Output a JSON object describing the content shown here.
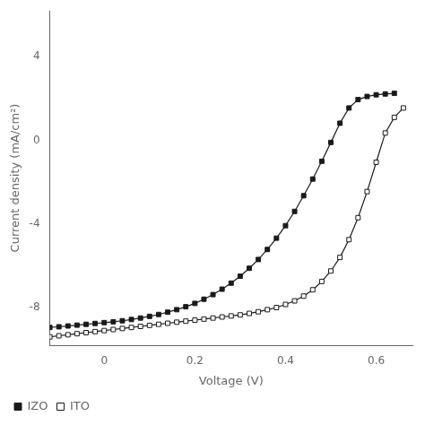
{
  "chart_data": {
    "type": "line",
    "xlabel": "Voltage (V)",
    "ylabel": "Current density (mA/cm²)",
    "xlim": [
      -0.12,
      0.68
    ],
    "ylim": [
      -9.8,
      6.2
    ],
    "xticks": [
      0.0,
      0.2,
      0.4,
      0.6
    ],
    "yticks": [
      -8,
      -4,
      0,
      4
    ],
    "grid": false,
    "legend": "bottom",
    "series": [
      {
        "name": "IZO",
        "color": "#1a1a1a",
        "marker": "square",
        "line_style": "solid",
        "x": [
          -0.12,
          -0.1,
          -0.08,
          -0.06,
          -0.04,
          -0.02,
          0.0,
          0.02,
          0.04,
          0.06,
          0.08,
          0.1,
          0.12,
          0.14,
          0.16,
          0.18,
          0.2,
          0.22,
          0.24,
          0.26,
          0.28,
          0.3,
          0.32,
          0.34,
          0.36,
          0.38,
          0.4,
          0.42,
          0.44,
          0.46,
          0.48,
          0.5,
          0.52,
          0.54,
          0.56,
          0.58,
          0.6,
          0.62,
          0.64
        ],
        "values": [
          -8.95,
          -8.92,
          -8.88,
          -8.84,
          -8.8,
          -8.76,
          -8.72,
          -8.68,
          -8.63,
          -8.57,
          -8.5,
          -8.42,
          -8.33,
          -8.22,
          -8.1,
          -7.96,
          -7.8,
          -7.6,
          -7.38,
          -7.12,
          -6.83,
          -6.5,
          -6.12,
          -5.7,
          -5.22,
          -4.68,
          -4.08,
          -3.4,
          -2.65,
          -1.85,
          -1.0,
          -0.1,
          0.82,
          1.55,
          1.95,
          2.1,
          2.18,
          2.22,
          2.25
        ]
      },
      {
        "name": "ITO",
        "color": "#1a1a1a",
        "marker": "open_square",
        "line_style": "solid",
        "x": [
          -0.12,
          -0.1,
          -0.08,
          -0.06,
          -0.04,
          -0.02,
          0.0,
          0.02,
          0.04,
          0.06,
          0.08,
          0.1,
          0.12,
          0.14,
          0.16,
          0.18,
          0.2,
          0.22,
          0.24,
          0.26,
          0.28,
          0.3,
          0.32,
          0.34,
          0.36,
          0.38,
          0.4,
          0.42,
          0.44,
          0.46,
          0.48,
          0.5,
          0.52,
          0.54,
          0.56,
          0.58,
          0.6,
          0.62,
          0.64,
          0.66
        ],
        "values": [
          -9.4,
          -9.35,
          -9.3,
          -9.25,
          -9.2,
          -9.15,
          -9.1,
          -9.05,
          -9.0,
          -8.95,
          -8.9,
          -8.85,
          -8.8,
          -8.75,
          -8.7,
          -8.65,
          -8.6,
          -8.55,
          -8.5,
          -8.45,
          -8.4,
          -8.35,
          -8.28,
          -8.2,
          -8.1,
          -8.0,
          -7.85,
          -7.68,
          -7.45,
          -7.15,
          -6.75,
          -6.25,
          -5.6,
          -4.75,
          -3.7,
          -2.45,
          -1.05,
          0.35,
          1.1,
          1.55
        ]
      }
    ]
  }
}
